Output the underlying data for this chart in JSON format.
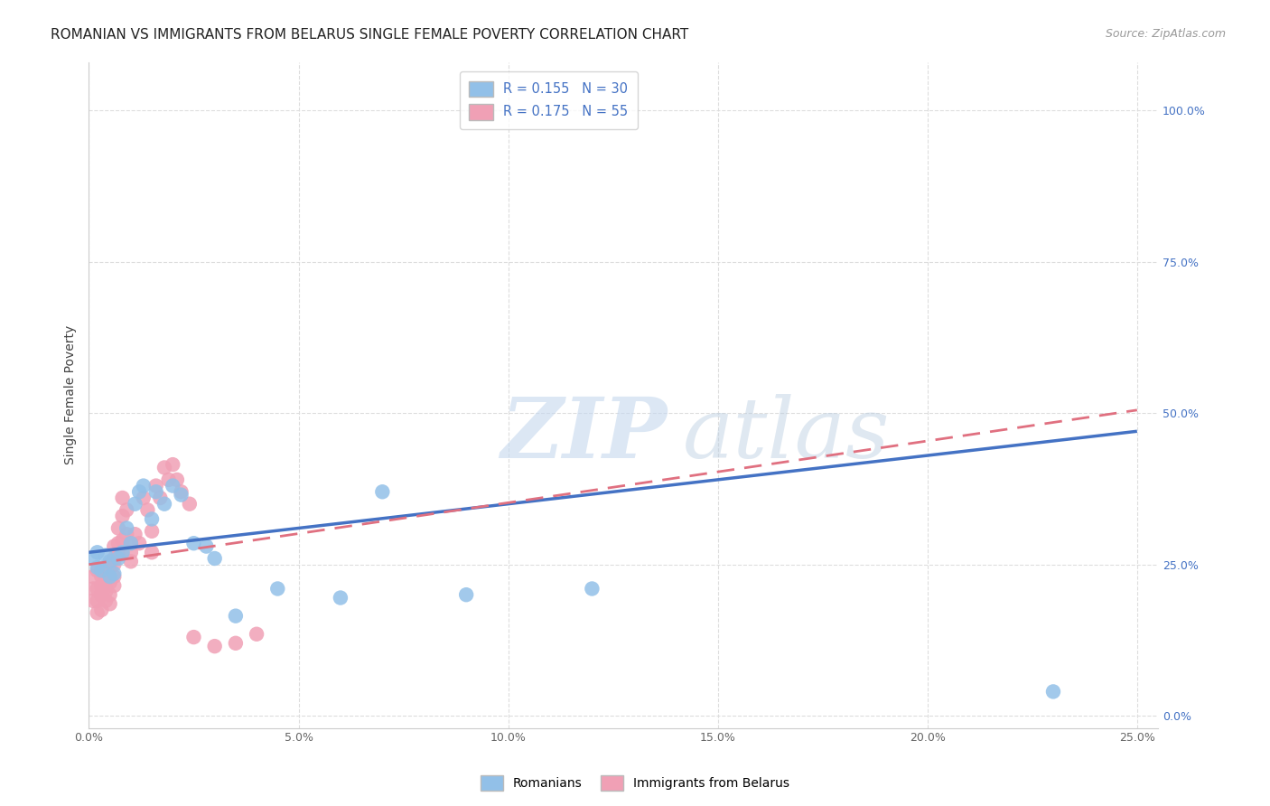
{
  "title": "ROMANIAN VS IMMIGRANTS FROM BELARUS SINGLE FEMALE POVERTY CORRELATION CHART",
  "source": "Source: ZipAtlas.com",
  "ylabel": "Single Female Poverty",
  "xlim": [
    0.0,
    0.255
  ],
  "ylim": [
    -0.02,
    1.08
  ],
  "xticks": [
    0.0,
    0.05,
    0.1,
    0.15,
    0.2,
    0.25
  ],
  "yticks": [
    0.0,
    0.25,
    0.5,
    0.75,
    1.0
  ],
  "xticklabels": [
    "0.0%",
    "5.0%",
    "10.0%",
    "15.0%",
    "20.0%",
    "25.0%"
  ],
  "yticklabels_right": [
    "0.0%",
    "25.0%",
    "50.0%",
    "75.0%",
    "100.0%"
  ],
  "romanians_x": [
    0.001,
    0.002,
    0.002,
    0.003,
    0.004,
    0.005,
    0.005,
    0.006,
    0.007,
    0.008,
    0.009,
    0.01,
    0.011,
    0.012,
    0.013,
    0.015,
    0.016,
    0.018,
    0.02,
    0.022,
    0.025,
    0.028,
    0.03,
    0.035,
    0.045,
    0.06,
    0.07,
    0.09,
    0.12,
    0.23
  ],
  "romanians_y": [
    0.26,
    0.245,
    0.27,
    0.24,
    0.265,
    0.255,
    0.23,
    0.235,
    0.26,
    0.27,
    0.31,
    0.285,
    0.35,
    0.37,
    0.38,
    0.325,
    0.37,
    0.35,
    0.38,
    0.365,
    0.285,
    0.28,
    0.26,
    0.165,
    0.21,
    0.195,
    0.37,
    0.2,
    0.21,
    0.04
  ],
  "belarus_x": [
    0.001,
    0.001,
    0.001,
    0.002,
    0.002,
    0.002,
    0.002,
    0.003,
    0.003,
    0.003,
    0.003,
    0.003,
    0.004,
    0.004,
    0.004,
    0.004,
    0.005,
    0.005,
    0.005,
    0.005,
    0.005,
    0.006,
    0.006,
    0.006,
    0.006,
    0.006,
    0.007,
    0.007,
    0.007,
    0.008,
    0.008,
    0.008,
    0.009,
    0.009,
    0.01,
    0.01,
    0.01,
    0.011,
    0.012,
    0.013,
    0.014,
    0.015,
    0.015,
    0.016,
    0.017,
    0.018,
    0.019,
    0.02,
    0.021,
    0.022,
    0.024,
    0.025,
    0.03,
    0.035,
    0.04
  ],
  "belarus_y": [
    0.23,
    0.21,
    0.19,
    0.24,
    0.21,
    0.19,
    0.17,
    0.2,
    0.215,
    0.23,
    0.2,
    0.175,
    0.215,
    0.23,
    0.205,
    0.19,
    0.25,
    0.245,
    0.22,
    0.2,
    0.185,
    0.28,
    0.26,
    0.25,
    0.23,
    0.215,
    0.31,
    0.285,
    0.265,
    0.33,
    0.36,
    0.29,
    0.34,
    0.3,
    0.285,
    0.27,
    0.255,
    0.3,
    0.285,
    0.36,
    0.34,
    0.305,
    0.27,
    0.38,
    0.36,
    0.41,
    0.39,
    0.415,
    0.39,
    0.37,
    0.35,
    0.13,
    0.115,
    0.12,
    0.135
  ],
  "ro_trend_x0": 0.0,
  "ro_trend_y0": 0.27,
  "ro_trend_x1": 0.25,
  "ro_trend_y1": 0.47,
  "be_trend_x0": 0.0,
  "be_trend_y0": 0.25,
  "be_trend_x1": 0.25,
  "be_trend_y1": 0.505,
  "romanian_scatter_color": "#92C0E8",
  "belarus_scatter_color": "#F0A0B5",
  "romanian_line_color": "#4472C4",
  "belarus_line_color": "#E07080",
  "R_romanian": "0.155",
  "N_romanian": "30",
  "R_belarus": "0.175",
  "N_belarus": "55",
  "watermark_zip": "ZIP",
  "watermark_atlas": "atlas",
  "watermark_color": "#C5D8EE",
  "bg_color": "#FFFFFF",
  "grid_color": "#DDDDDD",
  "title_fontsize": 11,
  "tick_fontsize": 9,
  "source_fontsize": 9,
  "legend_fontsize": 10.5
}
